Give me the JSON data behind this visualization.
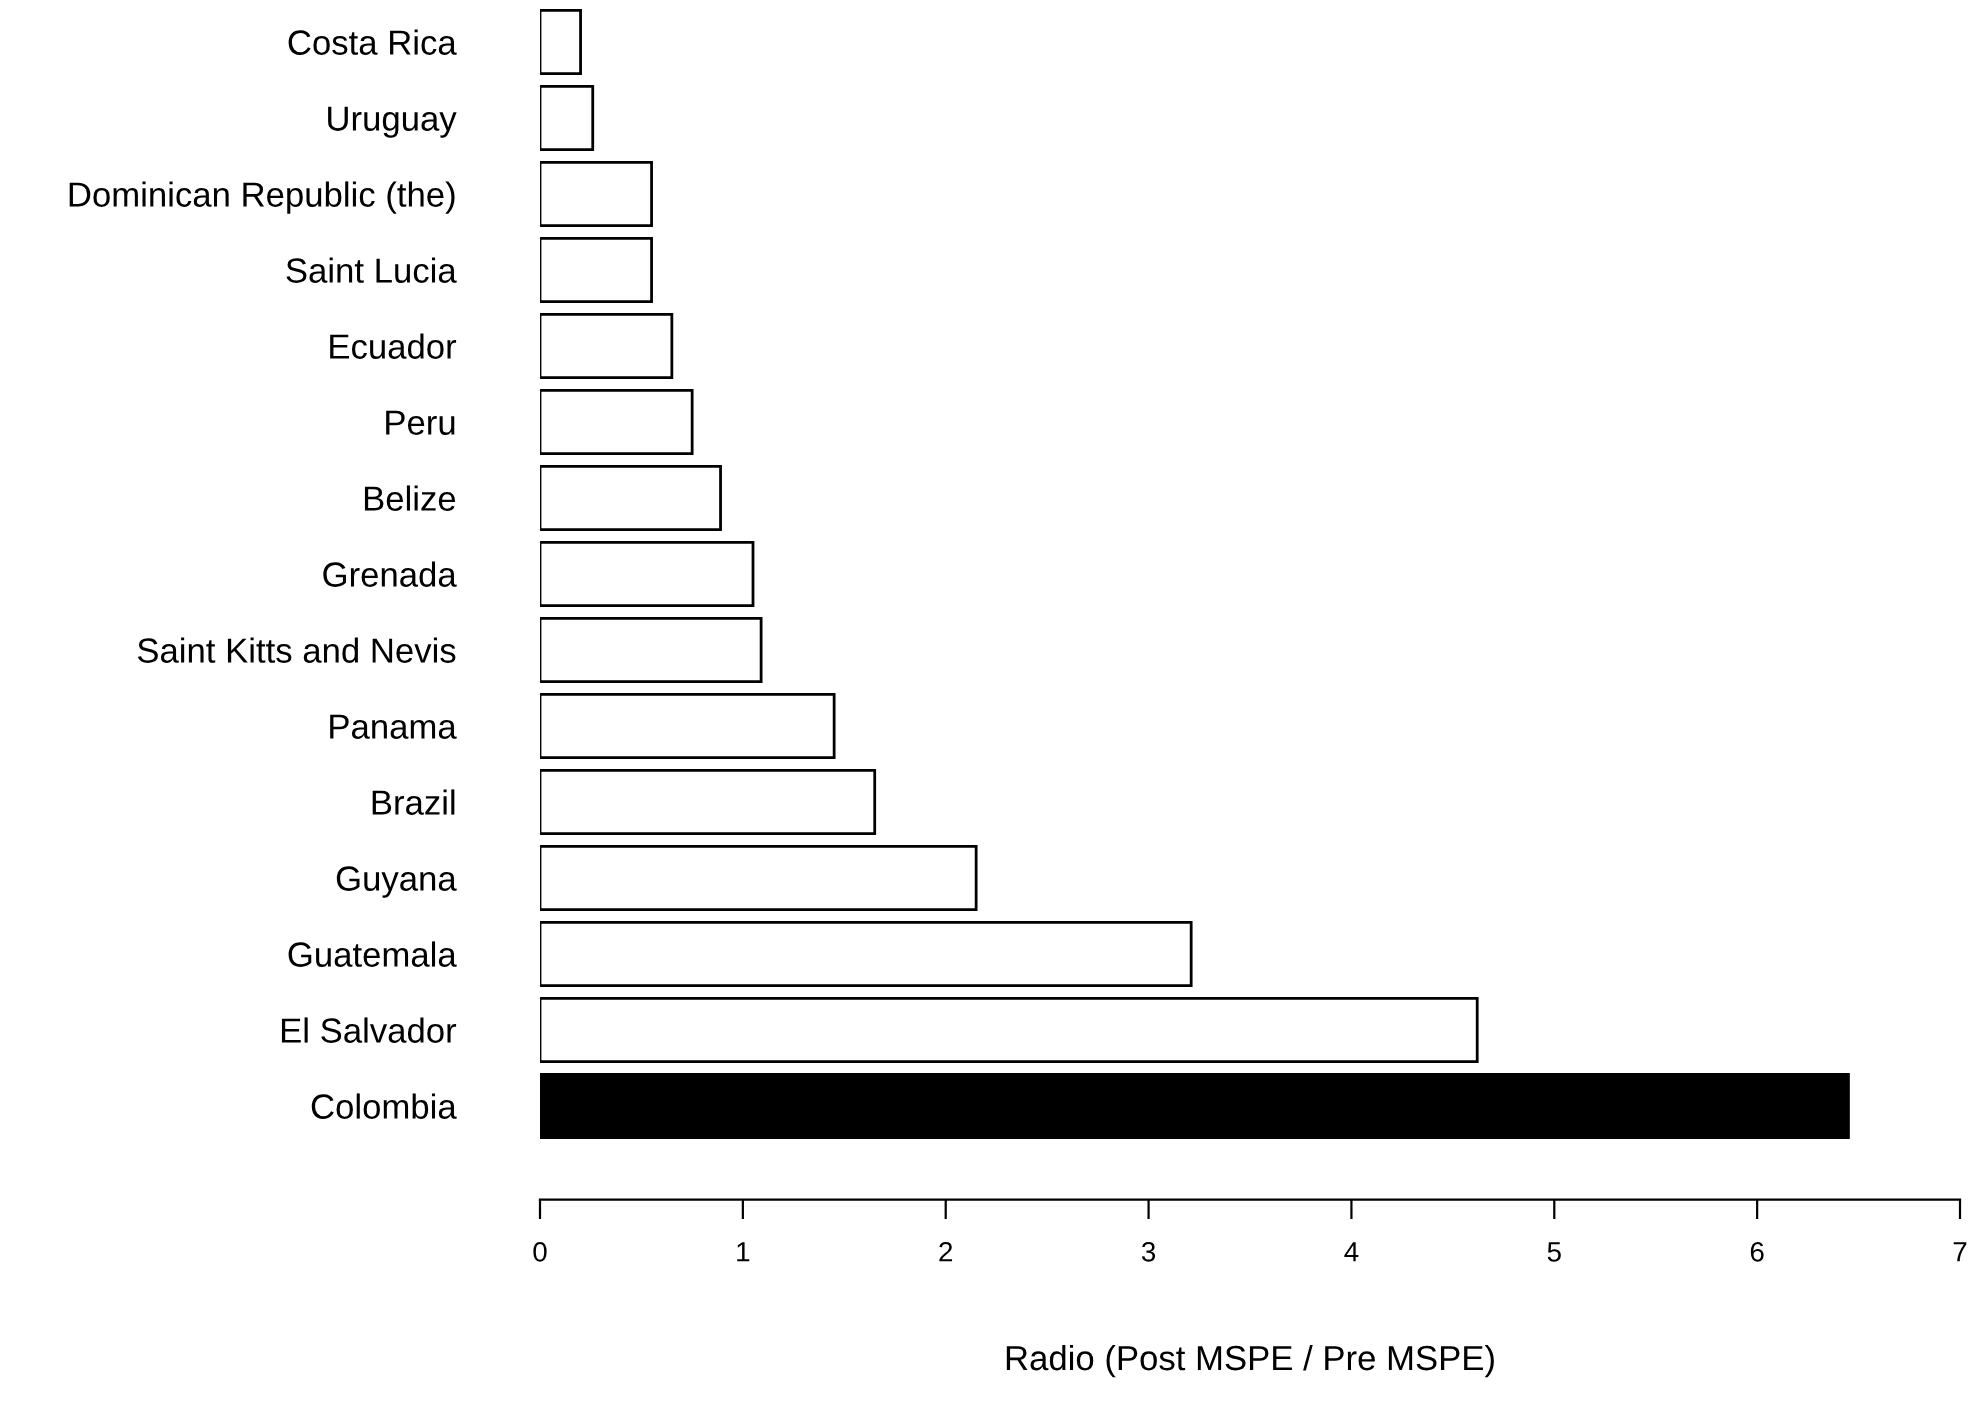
{
  "chart_data": {
    "type": "bar",
    "orientation": "horizontal",
    "xlabel": "Radio (Post MSPE / Pre MSPE)",
    "categories": [
      "Costa Rica",
      "Uruguay",
      "Dominican Republic (the)",
      "Saint Lucia",
      "Ecuador",
      "Peru",
      "Belize",
      "Grenada",
      "Saint Kitts and Nevis",
      "Panama",
      "Brazil",
      "Guyana",
      "Guatemala",
      "El Salvador",
      "Colombia"
    ],
    "values": [
      0.2,
      0.26,
      0.55,
      0.55,
      0.65,
      0.75,
      0.89,
      1.05,
      1.09,
      1.45,
      1.65,
      2.15,
      3.21,
      4.62,
      6.45
    ],
    "colors": [
      "#ffffff",
      "#ffffff",
      "#ffffff",
      "#ffffff",
      "#ffffff",
      "#ffffff",
      "#ffffff",
      "#ffffff",
      "#ffffff",
      "#ffffff",
      "#ffffff",
      "#ffffff",
      "#ffffff",
      "#ffffff",
      "#000000"
    ],
    "xlim": [
      0,
      7
    ],
    "xticks": [
      0,
      1,
      2,
      3,
      4,
      5,
      6,
      7
    ],
    "grid": false,
    "legend": false
  }
}
